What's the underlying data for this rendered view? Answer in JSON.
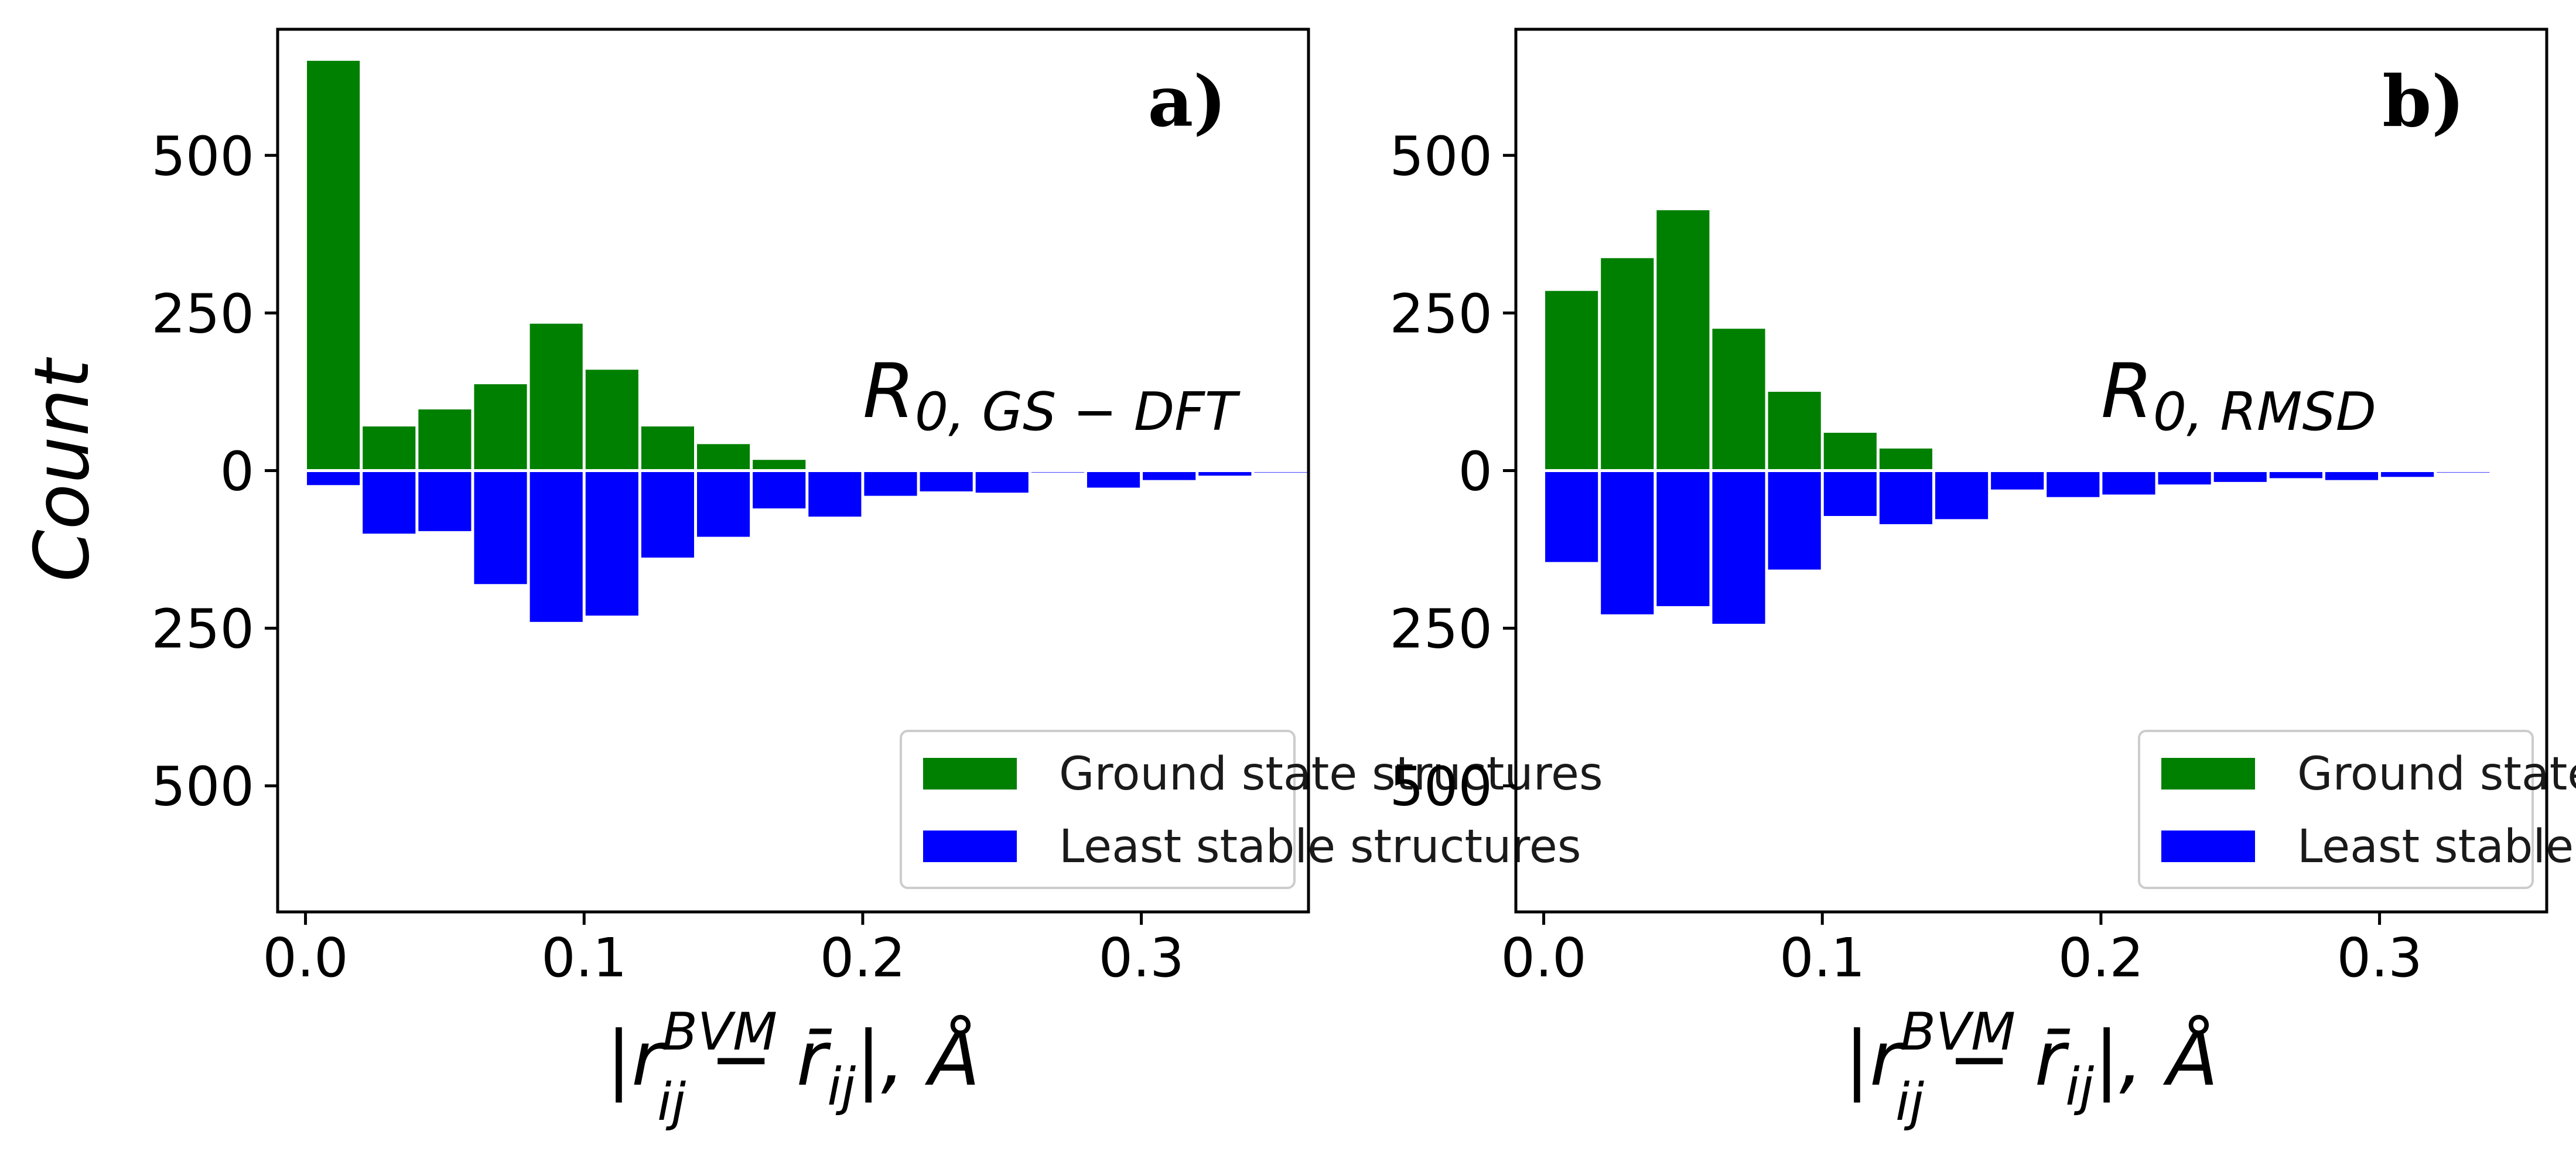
{
  "chart_data": [
    {
      "type": "bar",
      "panel_label": "a)",
      "annotation": {
        "base": "R",
        "subscript": "0, GS − DFT"
      },
      "ylabel": "Count",
      "xlabel": {
        "prefix": "|r",
        "sup": "BVM",
        "sub1": "ij",
        "mid": " − r̄",
        "sub2": "ij",
        "suffix": "|,  Å"
      },
      "xlim": [
        -0.01,
        0.36
      ],
      "ylim": [
        -700,
        700
      ],
      "xticks": [
        "0.0",
        "0.1",
        "0.2",
        "0.3"
      ],
      "yticks": [
        "500",
        "250",
        "0",
        "250",
        "500"
      ],
      "bin_width": 0.02,
      "bin_starts": [
        0.0,
        0.02,
        0.04,
        0.06,
        0.08,
        0.1,
        0.12,
        0.14,
        0.16,
        0.18,
        0.2,
        0.22,
        0.24,
        0.26,
        0.28,
        0.3,
        0.32,
        0.34
      ],
      "series": [
        {
          "name": "Ground state structures",
          "color": "#008000",
          "direction": "up",
          "values": [
            650,
            70,
            97,
            137,
            233,
            160,
            70,
            42,
            17,
            0,
            0,
            0,
            0,
            0,
            0,
            0,
            0,
            0
          ]
        },
        {
          "name": "Least stable structures",
          "color": "#0000ff",
          "direction": "down",
          "values": [
            23,
            100,
            96,
            180,
            240,
            230,
            138,
            105,
            60,
            73,
            40,
            33,
            35,
            3,
            27,
            15,
            8,
            3
          ]
        }
      ],
      "legend": {
        "position": "lower right"
      }
    },
    {
      "type": "bar",
      "panel_label": "b)",
      "annotation": {
        "base": "R",
        "subscript": "0, RMSD"
      },
      "ylabel": "",
      "xlabel": {
        "prefix": "|r",
        "sup": "BVM",
        "sub1": "ij",
        "mid": " − r̄",
        "sub2": "ij",
        "suffix": "|,  Å"
      },
      "xlim": [
        -0.01,
        0.36
      ],
      "ylim": [
        -700,
        700
      ],
      "xticks": [
        "0.0",
        "0.1",
        "0.2",
        "0.3"
      ],
      "yticks": [
        "500",
        "250",
        "0",
        "250",
        "500"
      ],
      "bin_width": 0.02,
      "bin_starts": [
        0.0,
        0.02,
        0.04,
        0.06,
        0.08,
        0.1,
        0.12,
        0.14,
        0.16,
        0.18,
        0.2,
        0.22,
        0.24,
        0.26,
        0.28,
        0.3,
        0.32,
        0.34
      ],
      "series": [
        {
          "name": "Ground state structures",
          "color": "#008000",
          "direction": "up",
          "values": [
            285,
            337,
            413,
            225,
            125,
            60,
            35,
            0,
            0,
            0,
            0,
            0,
            0,
            0,
            0,
            0,
            0,
            0
          ]
        },
        {
          "name": "Least stable structures",
          "color": "#0000ff",
          "direction": "down",
          "values": [
            145,
            228,
            215,
            243,
            157,
            72,
            85,
            77,
            30,
            42,
            38,
            22,
            18,
            12,
            15,
            10,
            3,
            2
          ]
        }
      ],
      "legend": {
        "position": "lower right"
      }
    }
  ]
}
